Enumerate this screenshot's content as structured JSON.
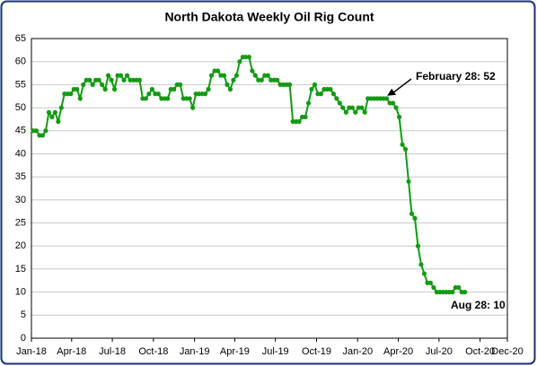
{
  "chart_data": {
    "type": "line",
    "title": "North Dakota Weekly Oil Rig Count",
    "x": [
      4,
      11,
      18,
      25,
      32,
      39,
      46,
      53,
      60,
      67,
      74,
      81,
      88,
      95,
      102,
      109,
      116,
      123,
      130,
      137,
      144,
      151,
      158,
      165,
      172,
      179,
      186,
      193,
      200,
      207,
      214,
      221,
      228,
      235,
      242,
      249,
      256,
      263,
      270,
      277,
      284,
      291,
      298,
      305,
      312,
      319,
      326,
      333,
      340,
      347,
      354,
      361,
      368,
      375,
      382,
      389,
      396,
      403,
      410,
      417,
      424,
      431,
      438,
      445,
      452,
      459,
      466,
      473,
      480,
      487,
      494,
      501,
      508,
      515,
      522,
      529,
      536,
      543,
      550,
      557,
      564,
      571,
      578,
      585,
      592,
      599,
      606,
      613,
      620,
      627,
      634,
      641,
      648,
      655,
      662,
      669,
      676,
      683,
      690,
      697,
      704,
      711,
      718,
      725,
      732,
      739,
      746,
      753,
      760,
      767,
      774,
      781,
      788,
      795,
      802,
      809,
      816,
      823,
      830,
      837,
      844,
      851,
      858,
      865,
      872,
      879,
      886,
      893,
      900,
      907,
      914,
      921,
      928,
      935,
      942,
      949,
      956,
      963,
      970
    ],
    "series": [
      {
        "color": "#139a13",
        "values": [
          45,
          45,
          44,
          44,
          45,
          49,
          48,
          49,
          47,
          50,
          53,
          53,
          53,
          54,
          54,
          52,
          55,
          56,
          56,
          55,
          56,
          56,
          55,
          54,
          57,
          56,
          54,
          57,
          57,
          56,
          57,
          56,
          56,
          56,
          56,
          52,
          52,
          53,
          54,
          53,
          53,
          52,
          52,
          52,
          54,
          54,
          55,
          55,
          52,
          52,
          52,
          50,
          53,
          53,
          53,
          53,
          54,
          57,
          58,
          58,
          57,
          57,
          55,
          54,
          56,
          57,
          60,
          61,
          61,
          61,
          58,
          57,
          56,
          56,
          57,
          57,
          56,
          56,
          56,
          55,
          55,
          55,
          55,
          47,
          47,
          47,
          48,
          48,
          51,
          54,
          55,
          53,
          53,
          54,
          54,
          54,
          53,
          52,
          51,
          50,
          49,
          50,
          50,
          49,
          50,
          50,
          49,
          52,
          52,
          52,
          52,
          52,
          52,
          52,
          51,
          51,
          50,
          48,
          42,
          41,
          34,
          27,
          26,
          20,
          16,
          14,
          12,
          12,
          11,
          10,
          10,
          10,
          10,
          10,
          10,
          11,
          11,
          10,
          10
        ]
      }
    ],
    "xlim": [
      0,
      1065
    ],
    "xticks": [
      {
        "value": 0,
        "label": "Jan-18"
      },
      {
        "value": 90,
        "label": "Apr-18"
      },
      {
        "value": 181,
        "label": "Jul-18"
      },
      {
        "value": 273,
        "label": "Oct-18"
      },
      {
        "value": 365,
        "label": "Jan-19"
      },
      {
        "value": 455,
        "label": "Apr-19"
      },
      {
        "value": 546,
        "label": "Jul-19"
      },
      {
        "value": 638,
        "label": "Oct-19"
      },
      {
        "value": 730,
        "label": "Jan-20"
      },
      {
        "value": 821,
        "label": "Apr-20"
      },
      {
        "value": 912,
        "label": "Jul-20"
      },
      {
        "value": 1004,
        "label": "Oct-20"
      },
      {
        "value": 1065,
        "label": "Dec-20"
      }
    ],
    "ylim": [
      0,
      65
    ],
    "yticks": [
      0,
      5,
      10,
      15,
      20,
      25,
      30,
      35,
      40,
      45,
      50,
      55,
      60,
      65
    ],
    "grid": true,
    "annotations": [
      "February 28: 52",
      "Aug 28: 10"
    ]
  }
}
